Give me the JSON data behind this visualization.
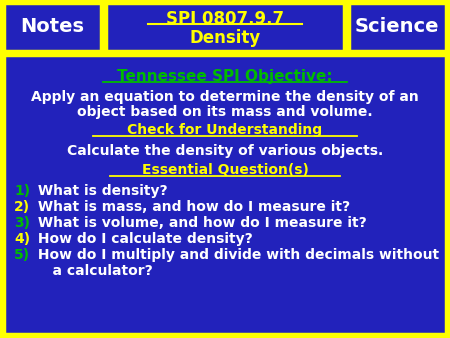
{
  "bg_color": "#FFFF00",
  "header_bg": "#2222BB",
  "body_bg": "#2222BB",
  "border_color": "#FFFF00",
  "notes_text": "Notes",
  "science_text": "Science",
  "title_line1": "SPI 0807.9.7",
  "title_line2": "Density",
  "title_color": "#FFFF00",
  "header_text_color": "#FFFFFF",
  "tn_objective_text": "Tennessee SPI Objective:",
  "tn_objective_color": "#00BB00",
  "body_white_text_1": "Apply an equation to determine the density of an",
  "body_white_text_2": "object based on its mass and volume.",
  "check_text": "Check for Understanding",
  "check_color": "#FFFF00",
  "calc_text": "Calculate the density of various objects.",
  "essential_text": "Essential Question(s)",
  "essential_color": "#FFFF00",
  "white_text_color": "#FFFFFF",
  "numbered_nums": [
    "1)",
    "2)",
    "3)",
    "4)",
    "5)",
    ""
  ],
  "numbered_num_colors": [
    "#00BB00",
    "#FFFF00",
    "#00BB00",
    "#FFFF00",
    "#00BB00",
    "#FFFFFF"
  ],
  "numbered_texts": [
    " What is density?",
    " What is mass, and how do I measure it?",
    " What is volume, and how do I measure it?",
    " How do I calculate density?",
    " How do I multiply and divide with decimals without",
    "    a calculator?"
  ]
}
